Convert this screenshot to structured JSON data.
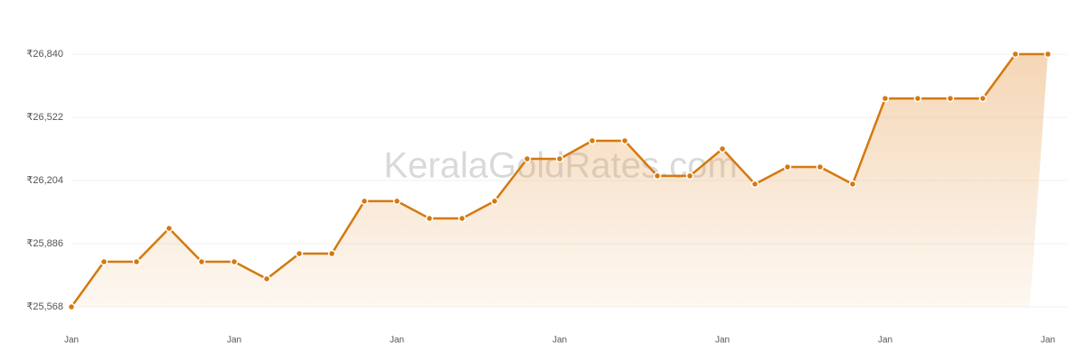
{
  "chart_data": {
    "type": "line",
    "watermark": "KeralaGoldRates.com",
    "categories": [
      "Jan",
      null,
      null,
      null,
      null,
      "Jan",
      null,
      null,
      null,
      null,
      "Jan",
      null,
      null,
      null,
      null,
      "Jan",
      null,
      null,
      null,
      null,
      "Jan",
      null,
      null,
      null,
      null,
      "Jan",
      null,
      null,
      null,
      null,
      "Jan"
    ],
    "values": [
      25568,
      25795,
      25795,
      25963,
      25795,
      25795,
      25709,
      25836,
      25836,
      26100,
      26100,
      26013,
      26013,
      26100,
      26313,
      26313,
      26404,
      26404,
      26227,
      26227,
      26363,
      26186,
      26272,
      26272,
      26186,
      26617,
      26617,
      26617,
      26617,
      26840,
      26840
    ],
    "color": "#d4790f",
    "ylim": [
      25568,
      26840
    ],
    "yticks": [
      {
        "value": 25568,
        "label": "₹25,568"
      },
      {
        "value": 25886,
        "label": "₹25,886"
      },
      {
        "value": 26204,
        "label": "₹26,204"
      },
      {
        "value": 26522,
        "label": "₹26,522"
      },
      {
        "value": 26840,
        "label": "₹26,840"
      }
    ],
    "grid": true
  }
}
